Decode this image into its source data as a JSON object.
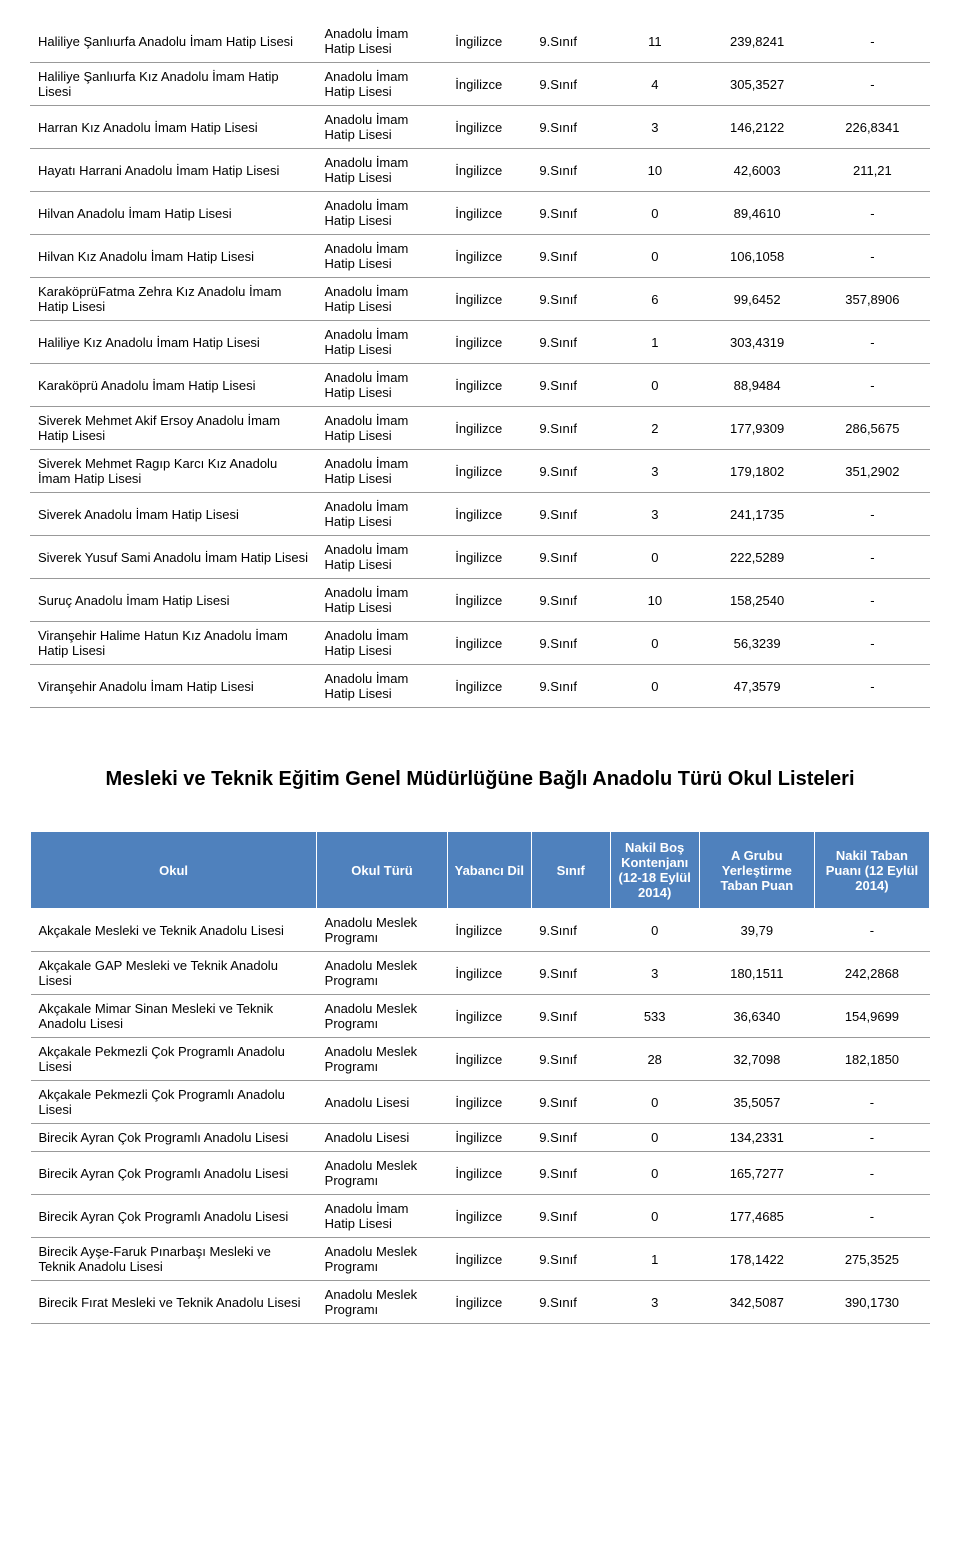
{
  "table1": {
    "rows": [
      {
        "okul": "Haliliye Şanlıurfa Anadolu İmam Hatip Lisesi",
        "tur": "Anadolu İmam Hatip Lisesi",
        "dil": "İngilizce",
        "sinif": "9.Sınıf",
        "kont": "11",
        "p1": "239,8241",
        "p2": "-"
      },
      {
        "okul": "Haliliye Şanlıurfa Kız Anadolu İmam Hatip Lisesi",
        "tur": "Anadolu İmam Hatip Lisesi",
        "dil": "İngilizce",
        "sinif": "9.Sınıf",
        "kont": "4",
        "p1": "305,3527",
        "p2": "-"
      },
      {
        "okul": "Harran Kız Anadolu İmam Hatip Lisesi",
        "tur": "Anadolu İmam Hatip Lisesi",
        "dil": "İngilizce",
        "sinif": "9.Sınıf",
        "kont": "3",
        "p1": "146,2122",
        "p2": "226,8341"
      },
      {
        "okul": "Hayatı Harrani Anadolu İmam Hatip Lisesi",
        "tur": "Anadolu İmam Hatip Lisesi",
        "dil": "İngilizce",
        "sinif": "9.Sınıf",
        "kont": "10",
        "p1": "42,6003",
        "p2": "211,21"
      },
      {
        "okul": "Hilvan Anadolu İmam Hatip Lisesi",
        "tur": "Anadolu İmam Hatip Lisesi",
        "dil": "İngilizce",
        "sinif": "9.Sınıf",
        "kont": "0",
        "p1": "89,4610",
        "p2": "-"
      },
      {
        "okul": "Hilvan Kız Anadolu İmam Hatip Lisesi",
        "tur": "Anadolu İmam Hatip Lisesi",
        "dil": "İngilizce",
        "sinif": "9.Sınıf",
        "kont": "0",
        "p1": "106,1058",
        "p2": "-"
      },
      {
        "okul": "KaraköprüFatma Zehra Kız Anadolu İmam Hatip Lisesi",
        "tur": "Anadolu İmam Hatip Lisesi",
        "dil": "İngilizce",
        "sinif": "9.Sınıf",
        "kont": "6",
        "p1": "99,6452",
        "p2": "357,8906"
      },
      {
        "okul": "Haliliye Kız Anadolu İmam Hatip Lisesi",
        "tur": "Anadolu İmam Hatip Lisesi",
        "dil": "İngilizce",
        "sinif": "9.Sınıf",
        "kont": "1",
        "p1": "303,4319",
        "p2": "-"
      },
      {
        "okul": "Karaköprü Anadolu İmam Hatip Lisesi",
        "tur": "Anadolu İmam Hatip Lisesi",
        "dil": "İngilizce",
        "sinif": "9.Sınıf",
        "kont": "0",
        "p1": "88,9484",
        "p2": "-"
      },
      {
        "okul": "Siverek Mehmet Akif Ersoy Anadolu İmam Hatip Lisesi",
        "tur": "Anadolu İmam Hatip Lisesi",
        "dil": "İngilizce",
        "sinif": "9.Sınıf",
        "kont": "2",
        "p1": "177,9309",
        "p2": "286,5675"
      },
      {
        "okul": "Siverek Mehmet Ragıp Karcı Kız Anadolu İmam Hatip Lisesi",
        "tur": "Anadolu İmam Hatip Lisesi",
        "dil": "İngilizce",
        "sinif": "9.Sınıf",
        "kont": "3",
        "p1": "179,1802",
        "p2": "351,2902"
      },
      {
        "okul": "Siverek Anadolu İmam Hatip Lisesi",
        "tur": "Anadolu İmam Hatip Lisesi",
        "dil": "İngilizce",
        "sinif": "9.Sınıf",
        "kont": "3",
        "p1": "241,1735",
        "p2": "-"
      },
      {
        "okul": "Siverek Yusuf Sami Anadolu İmam Hatip Lisesi",
        "tur": "Anadolu İmam Hatip Lisesi",
        "dil": "İngilizce",
        "sinif": "9.Sınıf",
        "kont": "0",
        "p1": "222,5289",
        "p2": "-"
      },
      {
        "okul": "Suruç Anadolu İmam Hatip Lisesi",
        "tur": "Anadolu İmam Hatip Lisesi",
        "dil": "İngilizce",
        "sinif": "9.Sınıf",
        "kont": "10",
        "p1": "158,2540",
        "p2": "-"
      },
      {
        "okul": "Viranşehir Halime Hatun Kız Anadolu İmam Hatip Lisesi",
        "tur": "Anadolu İmam Hatip Lisesi",
        "dil": "İngilizce",
        "sinif": "9.Sınıf",
        "kont": "0",
        "p1": "56,3239",
        "p2": "-"
      },
      {
        "okul": "Viranşehir Anadolu İmam Hatip Lisesi",
        "tur": "Anadolu İmam Hatip Lisesi",
        "dil": "İngilizce",
        "sinif": "9.Sınıf",
        "kont": "0",
        "p1": "47,3579",
        "p2": "-"
      }
    ]
  },
  "section2": {
    "title": "Mesleki ve Teknik Eğitim Genel Müdürlüğüne Bağlı Anadolu Türü Okul Listeleri",
    "headers": {
      "okul": "Okul",
      "tur": "Okul Türü",
      "dil": "Yabancı Dil",
      "sinif": "Sınıf",
      "kont": "Nakil Boş Kontenjanı (12-18 Eylül 2014)",
      "p1": "A Grubu Yerleştirme Taban Puan",
      "p2": "Nakil Taban Puanı (12 Eylül 2014)"
    },
    "rows": [
      {
        "okul": "Akçakale Mesleki ve Teknik Anadolu Lisesi",
        "tur": "Anadolu Meslek Programı",
        "dil": "İngilizce",
        "sinif": "9.Sınıf",
        "kont": "0",
        "p1": "39,79",
        "p2": "-"
      },
      {
        "okul": "Akçakale GAP Mesleki ve Teknik Anadolu Lisesi",
        "tur": "Anadolu Meslek Programı",
        "dil": "İngilizce",
        "sinif": "9.Sınıf",
        "kont": "3",
        "p1": "180,1511",
        "p2": "242,2868"
      },
      {
        "okul": "Akçakale Mimar Sinan Mesleki ve Teknik Anadolu Lisesi",
        "tur": "Anadolu Meslek Programı",
        "dil": "İngilizce",
        "sinif": "9.Sınıf",
        "kont": "533",
        "p1": "36,6340",
        "p2": "154,9699"
      },
      {
        "okul": "Akçakale Pekmezli Çok Programlı Anadolu Lisesi",
        "tur": "Anadolu Meslek Programı",
        "dil": "İngilizce",
        "sinif": "9.Sınıf",
        "kont": "28",
        "p1": "32,7098",
        "p2": "182,1850"
      },
      {
        "okul": "Akçakale Pekmezli Çok Programlı Anadolu Lisesi",
        "tur": "Anadolu Lisesi",
        "dil": "İngilizce",
        "sinif": "9.Sınıf",
        "kont": "0",
        "p1": "35,5057",
        "p2": "-"
      },
      {
        "okul": "Birecik Ayran Çok Programlı Anadolu Lisesi",
        "tur": "Anadolu Lisesi",
        "dil": "İngilizce",
        "sinif": "9.Sınıf",
        "kont": "0",
        "p1": "134,2331",
        "p2": "-"
      },
      {
        "okul": "Birecik Ayran Çok Programlı Anadolu Lisesi",
        "tur": "Anadolu Meslek Programı",
        "dil": "İngilizce",
        "sinif": "9.Sınıf",
        "kont": "0",
        "p1": "165,7277",
        "p2": "-"
      },
      {
        "okul": "Birecik Ayran Çok Programlı Anadolu Lisesi",
        "tur": "Anadolu İmam Hatip Lisesi",
        "dil": "İngilizce",
        "sinif": "9.Sınıf",
        "kont": "0",
        "p1": "177,4685",
        "p2": "-"
      },
      {
        "okul": "Birecik Ayşe-Faruk Pınarbaşı Mesleki ve Teknik Anadolu Lisesi",
        "tur": "Anadolu Meslek Programı",
        "dil": "İngilizce",
        "sinif": "9.Sınıf",
        "kont": "1",
        "p1": "178,1422",
        "p2": "275,3525"
      },
      {
        "okul": "Birecik Fırat Mesleki ve Teknik Anadolu Lisesi",
        "tur": "Anadolu Meslek Programı",
        "dil": "İngilizce",
        "sinif": "9.Sınıf",
        "kont": "3",
        "p1": "342,5087",
        "p2": "390,1730"
      }
    ]
  }
}
